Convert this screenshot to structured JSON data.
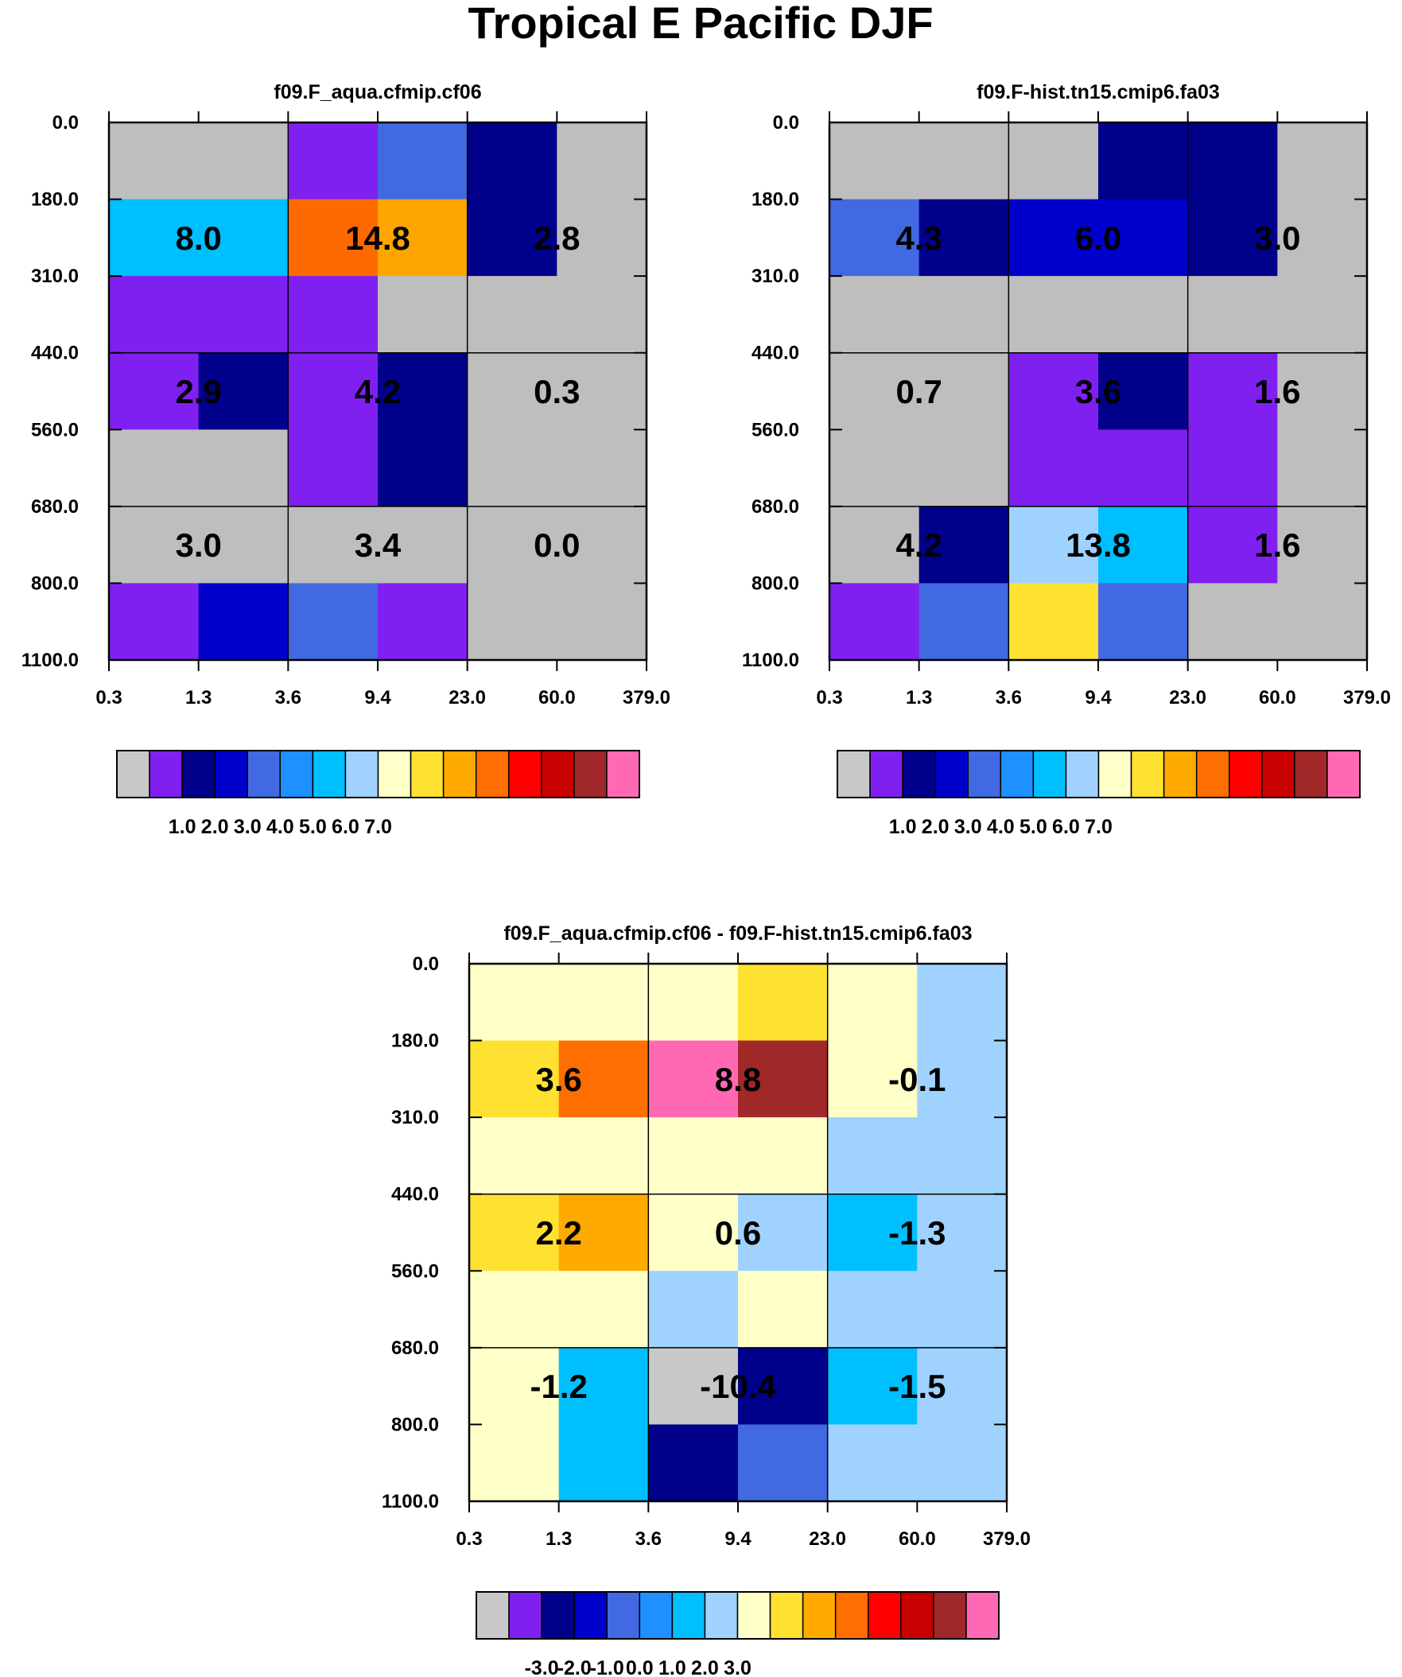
{
  "title": "Tropical E Pacific DJF",
  "chart_data": [
    {
      "type": "heatmap",
      "title": "f09.F_aqua.cfmip.cf06",
      "x_tick_labels": [
        "0.3",
        "1.3",
        "3.6",
        "9.4",
        "23.0",
        "60.0",
        "379.0"
      ],
      "y_tick_labels": [
        "0.0",
        "180.0",
        "310.0",
        "440.0",
        "560.0",
        "680.0",
        "800.0",
        "1100.0"
      ],
      "fine_cell_colors": [
        [
          "#bebebe",
          "#bebebe",
          "#8020f0",
          "#4169e1",
          "#00008b",
          "#bebebe"
        ],
        [
          "#00bfff",
          "#00bfff",
          "#ff6a00",
          "#ffa500",
          "#00008b",
          "#bebebe"
        ],
        [
          "#8020f0",
          "#8020f0",
          "#8020f0",
          "#bebebe",
          "#bebebe",
          "#bebebe"
        ],
        [
          "#8020f0",
          "#00008b",
          "#8020f0",
          "#00008b",
          "#bebebe",
          "#bebebe"
        ],
        [
          "#bebebe",
          "#bebebe",
          "#8020f0",
          "#00008b",
          "#bebebe",
          "#bebebe"
        ],
        [
          "#bebebe",
          "#bebebe",
          "#bebebe",
          "#bebebe",
          "#bebebe",
          "#bebebe"
        ],
        [
          "#8020f0",
          "#0000cd",
          "#4169e1",
          "#8020f0",
          "#bebebe",
          "#bebebe"
        ]
      ],
      "box_values": [
        [
          "8.0",
          "14.8",
          "2.8"
        ],
        [
          "2.9",
          "4.2",
          "0.3"
        ],
        [
          "3.0",
          "3.4",
          "0.0"
        ]
      ],
      "colorbar": {
        "colors": [
          "#c8c8c8",
          "#8020f0",
          "#00008b",
          "#0000cd",
          "#4169e1",
          "#1e90ff",
          "#00bfff",
          "#a0d2ff",
          "#ffffc8",
          "#ffe132",
          "#ffaa00",
          "#ff6e00",
          "#ff0000",
          "#c80000",
          "#a02828",
          "#ff69b4"
        ],
        "labels": [
          "1.0",
          "2.0",
          "3.0",
          "4.0",
          "5.0",
          "6.0",
          "7.0"
        ]
      }
    },
    {
      "type": "heatmap",
      "title": "f09.F-hist.tn15.cmip6.fa03",
      "x_tick_labels": [
        "0.3",
        "1.3",
        "3.6",
        "9.4",
        "23.0",
        "60.0",
        "379.0"
      ],
      "y_tick_labels": [
        "0.0",
        "180.0",
        "310.0",
        "440.0",
        "560.0",
        "680.0",
        "800.0",
        "1100.0"
      ],
      "fine_cell_colors": [
        [
          "#bebebe",
          "#bebebe",
          "#bebebe",
          "#00008b",
          "#00008b",
          "#bebebe"
        ],
        [
          "#4169e1",
          "#00008b",
          "#0000cd",
          "#0000cd",
          "#00008b",
          "#bebebe"
        ],
        [
          "#bebebe",
          "#bebebe",
          "#bebebe",
          "#bebebe",
          "#bebebe",
          "#bebebe"
        ],
        [
          "#bebebe",
          "#bebebe",
          "#8020f0",
          "#00008b",
          "#8020f0",
          "#bebebe"
        ],
        [
          "#bebebe",
          "#bebebe",
          "#8020f0",
          "#8020f0",
          "#8020f0",
          "#bebebe"
        ],
        [
          "#bebebe",
          "#00008b",
          "#a0d2ff",
          "#00bfff",
          "#8020f0",
          "#bebebe"
        ],
        [
          "#8020f0",
          "#4169e1",
          "#ffe132",
          "#4169e1",
          "#bebebe",
          "#bebebe"
        ]
      ],
      "box_values": [
        [
          "4.3",
          "6.0",
          "3.0"
        ],
        [
          "0.7",
          "3.6",
          "1.6"
        ],
        [
          "4.2",
          "13.8",
          "1.6"
        ]
      ],
      "colorbar": {
        "colors": [
          "#c8c8c8",
          "#8020f0",
          "#00008b",
          "#0000cd",
          "#4169e1",
          "#1e90ff",
          "#00bfff",
          "#a0d2ff",
          "#ffffc8",
          "#ffe132",
          "#ffaa00",
          "#ff6e00",
          "#ff0000",
          "#c80000",
          "#a02828",
          "#ff69b4"
        ],
        "labels": [
          "1.0",
          "2.0",
          "3.0",
          "4.0",
          "5.0",
          "6.0",
          "7.0"
        ]
      }
    },
    {
      "type": "heatmap",
      "title": "f09.F_aqua.cfmip.cf06 - f09.F-hist.tn15.cmip6.fa03",
      "x_tick_labels": [
        "0.3",
        "1.3",
        "3.6",
        "9.4",
        "23.0",
        "60.0",
        "379.0"
      ],
      "y_tick_labels": [
        "0.0",
        "180.0",
        "310.0",
        "440.0",
        "560.0",
        "680.0",
        "800.0",
        "1100.0"
      ],
      "fine_cell_colors": [
        [
          "#ffffc8",
          "#ffffc8",
          "#ffffc8",
          "#ffe132",
          "#ffffc8",
          "#a0d2ff"
        ],
        [
          "#ffe132",
          "#ff6e00",
          "#ff69b4",
          "#a02828",
          "#ffffc8",
          "#a0d2ff"
        ],
        [
          "#ffffc8",
          "#ffffc8",
          "#ffffc8",
          "#ffffc8",
          "#a0d2ff",
          "#a0d2ff"
        ],
        [
          "#ffe132",
          "#ffaa00",
          "#ffffc8",
          "#a0d2ff",
          "#00bfff",
          "#a0d2ff"
        ],
        [
          "#ffffc8",
          "#ffffc8",
          "#a0d2ff",
          "#ffffc8",
          "#a0d2ff",
          "#a0d2ff"
        ],
        [
          "#ffffc8",
          "#00bfff",
          "#c8c8c8",
          "#00008b",
          "#00bfff",
          "#a0d2ff"
        ],
        [
          "#ffffc8",
          "#00bfff",
          "#00008b",
          "#4169e1",
          "#a0d2ff",
          "#a0d2ff"
        ]
      ],
      "box_values": [
        [
          "3.6",
          "8.8",
          "-0.1"
        ],
        [
          "2.2",
          "0.6",
          "-1.3"
        ],
        [
          "-1.2",
          "-10.4",
          "-1.5"
        ]
      ],
      "colorbar": {
        "colors": [
          "#c8c8c8",
          "#8020f0",
          "#00008b",
          "#0000cd",
          "#4169e1",
          "#1e90ff",
          "#00bfff",
          "#a0d2ff",
          "#ffffc8",
          "#ffe132",
          "#ffaa00",
          "#ff6e00",
          "#ff0000",
          "#c80000",
          "#a02828",
          "#ff69b4"
        ],
        "labels": [
          "-3.0",
          "-2.0",
          "-1.0",
          "0.0",
          "1.0",
          "2.0",
          "3.0"
        ]
      }
    }
  ]
}
